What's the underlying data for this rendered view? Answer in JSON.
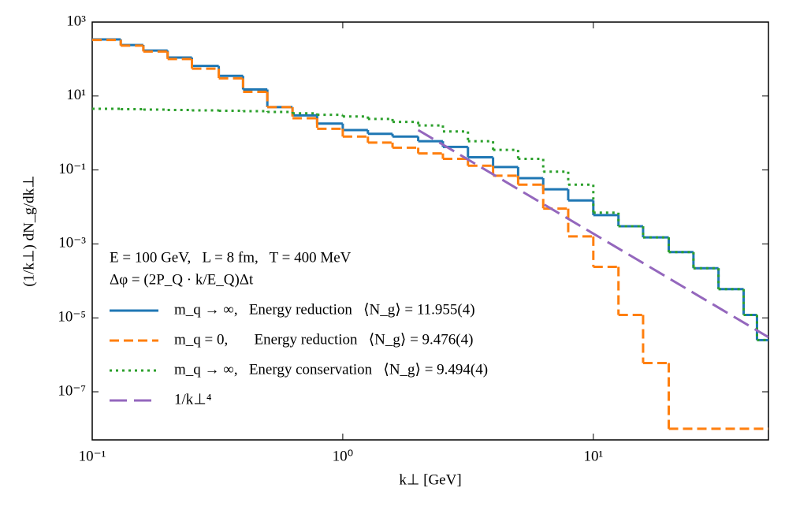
{
  "chart_data": {
    "type": "line",
    "drawstyle": "steps-post",
    "xscale": "log",
    "yscale": "log",
    "xlabel": "k⊥ [GeV]",
    "ylabel": "(1/k⊥) dN_g/dk⊥",
    "xlim": [
      0.1,
      50
    ],
    "ylim": [
      5e-09,
      1000
    ],
    "xticks": [
      {
        "value": 0.1,
        "label": "10⁻¹"
      },
      {
        "value": 1,
        "label": "10⁰"
      },
      {
        "value": 10,
        "label": "10¹"
      }
    ],
    "yticks": [
      {
        "value": 1e-07,
        "label": "10⁻⁷"
      },
      {
        "value": 1e-05,
        "label": "10⁻⁵"
      },
      {
        "value": 0.001,
        "label": "10⁻³"
      },
      {
        "value": 0.1,
        "label": "10⁻¹"
      },
      {
        "value": 10,
        "label": "10¹"
      },
      {
        "value": 1000,
        "label": "10³"
      }
    ],
    "legend": "lower left",
    "annotations": [
      "E = 100 GeV,   L = 8 fm,   T = 400 MeV",
      "Δφ = (2P_Q · k/E_Q)Δt"
    ],
    "series": [
      {
        "name": "m_q → ∞,   Energy reduction   ⟨N_g⟩ = 11.955(4)",
        "color": "#1f77b4",
        "linestyle": "solid",
        "x": [
          0.1,
          0.13,
          0.16,
          0.2,
          0.25,
          0.32,
          0.4,
          0.5,
          0.63,
          0.79,
          1,
          1.26,
          1.58,
          2,
          2.51,
          3.16,
          3.98,
          5.01,
          6.31,
          7.94,
          10,
          12.6,
          15.8,
          20,
          25.1,
          31.6,
          39.8,
          45
        ],
        "values": [
          340,
          240,
          170,
          110,
          65,
          35,
          15,
          5,
          3,
          1.8,
          1.2,
          0.95,
          0.8,
          0.6,
          0.42,
          0.22,
          0.12,
          0.06,
          0.03,
          0.015,
          0.006,
          0.003,
          0.0015,
          0.0006,
          0.00022,
          6e-05,
          1.2e-05,
          2.5e-06
        ]
      },
      {
        "name": "m_q = 0,       Energy reduction   ⟨N_g⟩ = 9.476(4)",
        "color": "#ff7f0e",
        "linestyle": "dashed",
        "x": [
          0.1,
          0.13,
          0.16,
          0.2,
          0.25,
          0.32,
          0.4,
          0.5,
          0.63,
          0.79,
          1,
          1.26,
          1.58,
          2,
          2.51,
          3.16,
          3.98,
          5.01,
          6.31,
          7.94,
          10,
          12.6,
          15.8,
          20
        ],
        "values": [
          330,
          230,
          160,
          100,
          55,
          30,
          13,
          5,
          2.5,
          1.3,
          0.8,
          0.55,
          0.4,
          0.28,
          0.2,
          0.13,
          0.07,
          0.04,
          0.009,
          0.0016,
          0.00024,
          1.2e-05,
          6e-07,
          1e-08
        ]
      },
      {
        "name": "m_q → ∞,   Energy conservation   ⟨N_g⟩ = 9.494(4)",
        "color": "#2ca02c",
        "linestyle": "dotted",
        "x": [
          0.1,
          0.13,
          0.16,
          0.2,
          0.25,
          0.32,
          0.4,
          0.5,
          0.63,
          0.79,
          1,
          1.26,
          1.58,
          2,
          2.51,
          3.16,
          3.98,
          5.01,
          6.31,
          7.94,
          10,
          12.6,
          15.8,
          20,
          25.1,
          31.6,
          39.8,
          45
        ],
        "values": [
          4.5,
          4.4,
          4.3,
          4.2,
          4.1,
          4,
          3.9,
          3.7,
          3.4,
          3.1,
          2.8,
          2.4,
          2,
          1.6,
          1.1,
          0.6,
          0.35,
          0.2,
          0.09,
          0.04,
          0.007,
          0.003,
          0.0015,
          0.0006,
          0.00022,
          6e-05,
          1.2e-05,
          2.5e-06
        ]
      },
      {
        "name": "1/k⊥⁴",
        "color": "#9467bd",
        "linestyle": "longdash",
        "drawstyle": "default",
        "x": [
          2,
          50
        ],
        "values": [
          1.2,
          3e-06
        ]
      }
    ]
  }
}
